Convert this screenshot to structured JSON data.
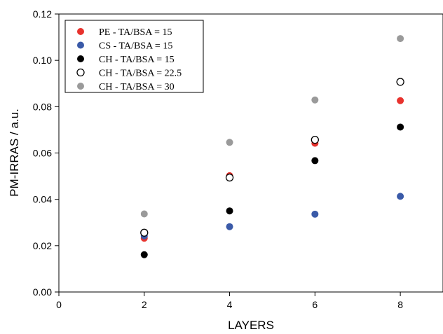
{
  "chart_data": {
    "type": "scatter",
    "title": "",
    "xlabel": "LAYERS",
    "ylabel": "PM-IRRAS / a.u.",
    "xlim": [
      0,
      9
    ],
    "ylim": [
      0,
      0.12
    ],
    "xticks": [
      0,
      2,
      4,
      6,
      8
    ],
    "yticks": [
      0.0,
      0.02,
      0.04,
      0.06,
      0.08,
      0.1,
      0.12
    ],
    "xtick_labels": [
      "0",
      "2",
      "4",
      "6",
      "8"
    ],
    "ytick_labels": [
      "0.00",
      "0.02",
      "0.04",
      "0.06",
      "0.08",
      "0.10",
      "0.12"
    ],
    "grid": false,
    "legend_position": "top-left",
    "series": [
      {
        "name": "PE - TA/BSA = 15",
        "color": "#e8322d",
        "marker": "filled-circle",
        "x": [
          2,
          4,
          6,
          8
        ],
        "y": [
          0.0232,
          0.0502,
          0.0642,
          0.0826
        ]
      },
      {
        "name": "CS - TA/BSA = 15",
        "color": "#3a5aa8",
        "marker": "filled-circle",
        "x": [
          2,
          4,
          6,
          8
        ],
        "y": [
          0.0242,
          0.0282,
          0.0336,
          0.0413
        ]
      },
      {
        "name": "CH - TA/BSA = 15",
        "color": "#000000",
        "marker": "filled-circle",
        "x": [
          2,
          4,
          6,
          8
        ],
        "y": [
          0.0161,
          0.035,
          0.0567,
          0.0712
        ]
      },
      {
        "name": "CH - TA/BSA = 22.5",
        "color": "#000000",
        "marker": "open-circle",
        "x": [
          2,
          4,
          6,
          8
        ],
        "y": [
          0.0256,
          0.0494,
          0.0657,
          0.0907
        ]
      },
      {
        "name": "CH - TA/BSA = 30",
        "color": "#9a9a9a",
        "marker": "filled-circle",
        "x": [
          2,
          4,
          6,
          8
        ],
        "y": [
          0.0337,
          0.0646,
          0.0829,
          0.1094
        ]
      }
    ]
  }
}
